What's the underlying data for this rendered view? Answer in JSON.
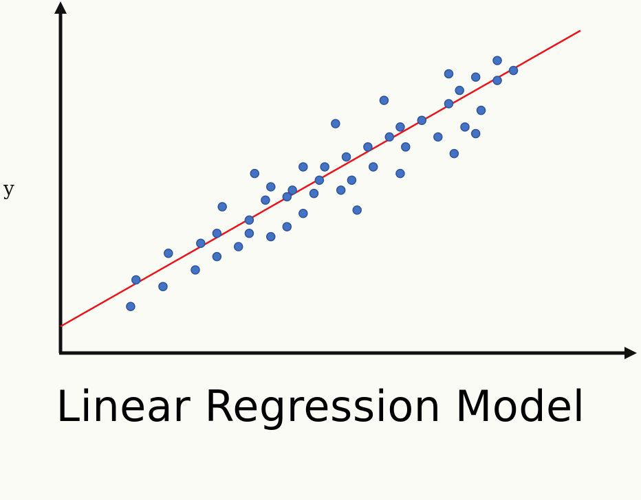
{
  "chart_data": {
    "type": "scatter",
    "title": "Linear Regression Model",
    "xlabel": "",
    "ylabel": "y",
    "xlim": [
      0,
      100
    ],
    "ylim": [
      0,
      100
    ],
    "grid": false,
    "colors": {
      "points": "#4472c4",
      "points_edge": "#2f5597",
      "regression_line": "#e8141a",
      "axes": "#111111"
    },
    "regression_line": {
      "x": [
        0,
        100
      ],
      "y": [
        8,
        100
      ]
    },
    "points": [
      {
        "x": 13,
        "y": 14
      },
      {
        "x": 14,
        "y": 22
      },
      {
        "x": 19,
        "y": 20
      },
      {
        "x": 20,
        "y": 30
      },
      {
        "x": 25,
        "y": 25
      },
      {
        "x": 26,
        "y": 33
      },
      {
        "x": 29,
        "y": 29
      },
      {
        "x": 29,
        "y": 36
      },
      {
        "x": 30,
        "y": 44
      },
      {
        "x": 33,
        "y": 32
      },
      {
        "x": 35,
        "y": 40
      },
      {
        "x": 35,
        "y": 36
      },
      {
        "x": 36,
        "y": 54
      },
      {
        "x": 38,
        "y": 46
      },
      {
        "x": 39,
        "y": 50
      },
      {
        "x": 39,
        "y": 35
      },
      {
        "x": 42,
        "y": 38
      },
      {
        "x": 42,
        "y": 47
      },
      {
        "x": 43,
        "y": 49
      },
      {
        "x": 45,
        "y": 42
      },
      {
        "x": 45,
        "y": 56
      },
      {
        "x": 47,
        "y": 48
      },
      {
        "x": 48,
        "y": 52
      },
      {
        "x": 49,
        "y": 56
      },
      {
        "x": 51,
        "y": 69
      },
      {
        "x": 52,
        "y": 49
      },
      {
        "x": 53,
        "y": 59
      },
      {
        "x": 54,
        "y": 52
      },
      {
        "x": 55,
        "y": 43
      },
      {
        "x": 57,
        "y": 62
      },
      {
        "x": 58,
        "y": 56
      },
      {
        "x": 60,
        "y": 76
      },
      {
        "x": 61,
        "y": 65
      },
      {
        "x": 63,
        "y": 54
      },
      {
        "x": 63,
        "y": 68
      },
      {
        "x": 64,
        "y": 62
      },
      {
        "x": 67,
        "y": 70
      },
      {
        "x": 70,
        "y": 65
      },
      {
        "x": 72,
        "y": 75
      },
      {
        "x": 72,
        "y": 84
      },
      {
        "x": 73,
        "y": 60
      },
      {
        "x": 74,
        "y": 79
      },
      {
        "x": 75,
        "y": 68
      },
      {
        "x": 77,
        "y": 83
      },
      {
        "x": 77,
        "y": 66
      },
      {
        "x": 78,
        "y": 73
      },
      {
        "x": 81,
        "y": 82
      },
      {
        "x": 81,
        "y": 88
      },
      {
        "x": 84,
        "y": 85
      }
    ]
  }
}
